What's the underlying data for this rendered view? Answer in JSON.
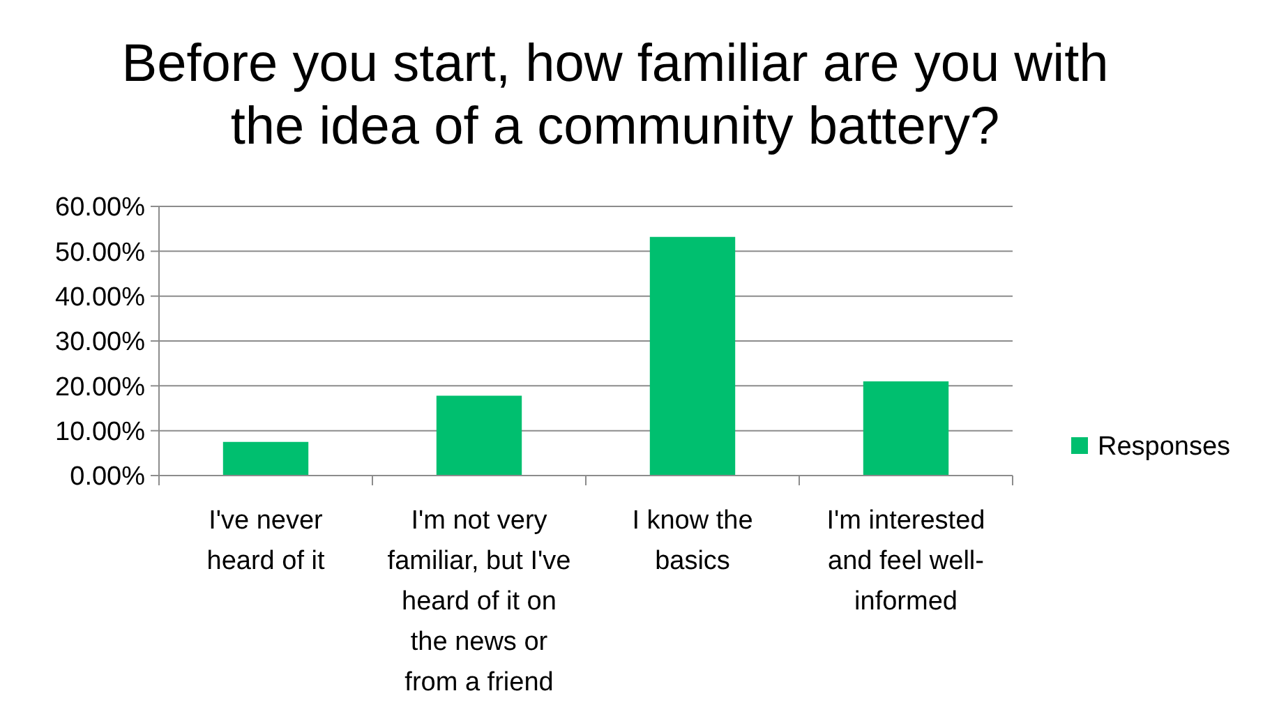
{
  "chart_data": {
    "type": "bar",
    "title": "Before you start, how familiar are you with the idea of a community battery?",
    "categories": [
      "I've never heard of it",
      "I'm not very familiar, but I've heard of it on the news or from a friend",
      "I know the basics",
      "I'm interested and feel well-informed"
    ],
    "series": [
      {
        "name": "Responses",
        "color": "#00bf6f",
        "values": [
          7.5,
          17.8,
          53.2,
          21.0
        ]
      }
    ],
    "ylim": [
      0,
      60
    ],
    "yticks": [
      {
        "value": 0,
        "label": "0.00%"
      },
      {
        "value": 10,
        "label": "10.00%"
      },
      {
        "value": 20,
        "label": "20.00%"
      },
      {
        "value": 30,
        "label": "30.00%"
      },
      {
        "value": 40,
        "label": "40.00%"
      },
      {
        "value": 50,
        "label": "50.00%"
      },
      {
        "value": 60,
        "label": "60.00%"
      }
    ],
    "grid": "y",
    "legend": "right"
  }
}
